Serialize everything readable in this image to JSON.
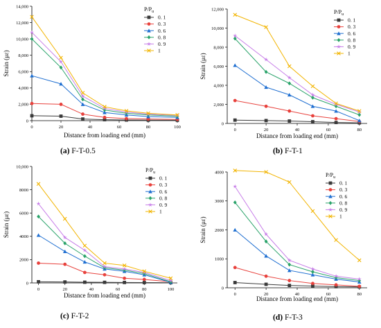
{
  "figure": {
    "legend_title": "P/P",
    "legend_title_sub": "u",
    "series_colors": [
      "#3a3a3a",
      "#e8413c",
      "#1f6fd1",
      "#2aa36a",
      "#c77ee8",
      "#f2b400"
    ],
    "marker_shapes": [
      "square",
      "circle",
      "triangle",
      "diamond",
      "star",
      "x"
    ]
  },
  "chart_data": [
    {
      "type": "line",
      "caption_letter": "(a)",
      "caption_text": " F-T-0.5",
      "xlabel": "Distance from loading end (mm)",
      "ylabel": "Strain (με)",
      "xlim": [
        0,
        100
      ],
      "ylim": [
        0,
        14000
      ],
      "xticks": [
        0,
        20,
        40,
        60,
        80,
        100
      ],
      "xtick_labels": [
        "0",
        "20",
        "40",
        "60",
        "80",
        "100"
      ],
      "yticks": [
        0,
        2000,
        4000,
        6000,
        8000,
        10000,
        12000,
        14000
      ],
      "ytick_labels": [
        "0",
        "2,000",
        "4,000",
        "6,000",
        "8,000",
        "10,000",
        "12,000",
        "14,000"
      ],
      "x": [
        0,
        20,
        35,
        50,
        65,
        80,
        100
      ],
      "series": [
        {
          "name": "0. 1",
          "values": [
            600,
            550,
            200,
            120,
            80,
            60,
            50
          ]
        },
        {
          "name": "0. 3",
          "values": [
            2100,
            2000,
            800,
            400,
            250,
            200,
            150
          ]
        },
        {
          "name": "0. 6",
          "values": [
            5500,
            4500,
            2000,
            1000,
            700,
            500,
            400
          ]
        },
        {
          "name": "0. 8",
          "values": [
            10000,
            6500,
            2600,
            1300,
            900,
            700,
            550
          ]
        },
        {
          "name": "0. 9",
          "values": [
            10800,
            7200,
            3000,
            1500,
            1050,
            800,
            650
          ]
        },
        {
          "name": "1",
          "values": [
            12700,
            7700,
            3400,
            1700,
            1200,
            900,
            700
          ]
        }
      ]
    },
    {
      "type": "line",
      "caption_letter": "(b)",
      "caption_text": " F-T-1",
      "xlabel": "Distance from loading end (mm)",
      "ylabel": "Strain (με)",
      "xlim": [
        -5,
        85
      ],
      "ylim": [
        0,
        12000
      ],
      "xticks": [
        0,
        20,
        40,
        60,
        80
      ],
      "xtick_labels": [
        "0",
        "20",
        "40",
        "60",
        "80"
      ],
      "yticks": [
        0,
        2000,
        4000,
        6000,
        8000,
        10000,
        12000
      ],
      "ytick_labels": [
        "0",
        "2,000",
        "4,000",
        "6,000",
        "8,000",
        "10,000",
        "12,000"
      ],
      "x": [
        0,
        20,
        35,
        50,
        65,
        80
      ],
      "series": [
        {
          "name": "0. 1",
          "values": [
            350,
            300,
            250,
            180,
            100,
            60
          ]
        },
        {
          "name": "0. 3",
          "values": [
            2400,
            1800,
            1300,
            800,
            500,
            200
          ]
        },
        {
          "name": "0. 6",
          "values": [
            6100,
            3800,
            3000,
            1800,
            1300,
            300
          ]
        },
        {
          "name": "0. 8",
          "values": [
            8900,
            5400,
            4200,
            2700,
            1800,
            900
          ]
        },
        {
          "name": "0. 9",
          "values": [
            9200,
            6700,
            4800,
            3000,
            2000,
            1200
          ]
        },
        {
          "name": "1",
          "values": [
            11400,
            10100,
            6000,
            3900,
            2100,
            1300
          ]
        }
      ]
    },
    {
      "type": "line",
      "caption_letter": "(c)",
      "caption_text": " F-T-2",
      "xlabel": "Distance from loading end (mm)",
      "ylabel": "Strain (με)",
      "xlim": [
        -5,
        105
      ],
      "ylim": [
        0,
        10000
      ],
      "xticks": [
        0,
        20,
        40,
        60,
        80,
        100
      ],
      "xtick_labels": [
        "0",
        "20",
        "40",
        "60",
        "80",
        "100"
      ],
      "yticks": [
        0,
        2000,
        4000,
        6000,
        8000,
        10000
      ],
      "ytick_labels": [
        "0",
        "2000",
        "4000",
        "6000",
        "8000",
        "10,000"
      ],
      "x": [
        0,
        20,
        35,
        50,
        65,
        80,
        100
      ],
      "series": [
        {
          "name": "0. 1",
          "values": [
            100,
            80,
            60,
            50,
            40,
            30,
            20
          ]
        },
        {
          "name": "0. 3",
          "values": [
            1700,
            1600,
            900,
            700,
            400,
            300,
            100
          ]
        },
        {
          "name": "0. 6",
          "values": [
            4100,
            2700,
            1800,
            1200,
            1000,
            700,
            50
          ]
        },
        {
          "name": "0. 8",
          "values": [
            5700,
            3400,
            2300,
            1300,
            1100,
            800,
            100
          ]
        },
        {
          "name": "0. 9",
          "values": [
            6800,
            3900,
            2800,
            1400,
            1200,
            900,
            200
          ]
        },
        {
          "name": "1",
          "values": [
            8500,
            5500,
            3200,
            1700,
            1500,
            1000,
            400
          ]
        }
      ]
    },
    {
      "type": "line",
      "caption_letter": "(d)",
      "caption_text": " F-T-3",
      "xlabel": "Distance from loading end (mm)",
      "ylabel": "Strain (με)",
      "xlim": [
        -5,
        85
      ],
      "ylim": [
        0,
        4000
      ],
      "xticks": [
        0,
        20,
        40,
        60,
        80
      ],
      "xtick_labels": [
        "0",
        "20",
        "40",
        "60",
        "80"
      ],
      "yticks": [
        0,
        1000,
        2000,
        3000,
        4000
      ],
      "ytick_labels": [
        "0",
        "1000",
        "2000",
        "3000",
        "4000"
      ],
      "x": [
        0,
        20,
        35,
        50,
        65,
        80
      ],
      "series": [
        {
          "name": "0. 1",
          "values": [
            180,
            120,
            80,
            60,
            40,
            30
          ]
        },
        {
          "name": "0. 3",
          "values": [
            700,
            400,
            250,
            150,
            100,
            50
          ]
        },
        {
          "name": "0. 6",
          "values": [
            2000,
            1100,
            600,
            450,
            300,
            200
          ]
        },
        {
          "name": "0. 8",
          "values": [
            2950,
            1600,
            800,
            550,
            350,
            250
          ]
        },
        {
          "name": "0. 9",
          "values": [
            3500,
            1850,
            950,
            650,
            400,
            300
          ]
        },
        {
          "name": "1",
          "values": [
            4050,
            4000,
            3650,
            2650,
            1650,
            950
          ]
        }
      ]
    }
  ]
}
